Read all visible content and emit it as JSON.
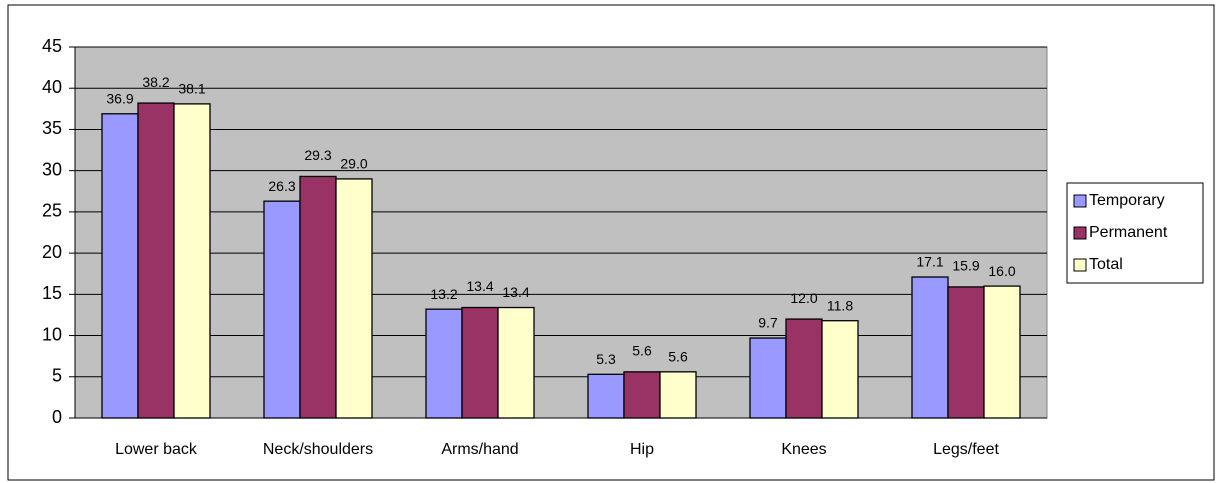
{
  "chart_data": {
    "type": "bar",
    "categories": [
      "Lower back",
      "Neck/shoulders",
      "Arms/hand",
      "Hip",
      "Knees",
      "Legs/feet"
    ],
    "series": [
      {
        "name": "Temporary",
        "color": "#9999ff",
        "values": [
          36.9,
          26.3,
          13.2,
          5.3,
          9.7,
          17.1
        ],
        "value_labels": [
          "36.9",
          "26.3",
          "13.2",
          "5.3",
          "9.7",
          "17.1"
        ]
      },
      {
        "name": "Permanent",
        "color": "#993366",
        "values": [
          38.2,
          29.3,
          13.4,
          5.6,
          12.0,
          15.9
        ],
        "value_labels": [
          "38.2",
          "29.3",
          "13.4",
          "5.6",
          "12.0",
          "15.9"
        ]
      },
      {
        "name": "Total",
        "color": "#ffffcc",
        "values": [
          38.1,
          29.0,
          13.4,
          5.6,
          11.8,
          16.0
        ],
        "value_labels": [
          "38.1",
          "29.0",
          "13.4",
          "5.6",
          "11.8",
          "16.0"
        ]
      }
    ],
    "ylim": [
      0,
      45
    ],
    "yticks": [
      0,
      5,
      10,
      15,
      20,
      25,
      30,
      35,
      40,
      45
    ],
    "grid": true,
    "legend": "right",
    "plot_background": "#c0c0c0"
  }
}
